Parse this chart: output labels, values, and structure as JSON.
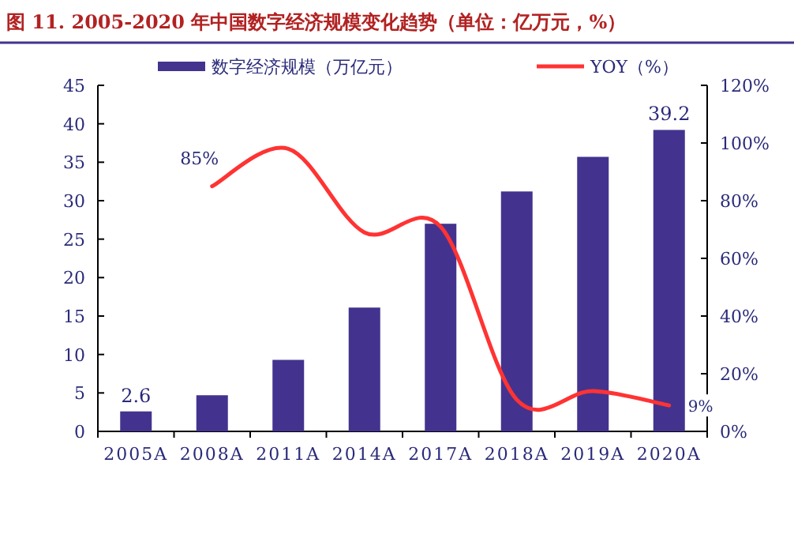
{
  "chart_data": {
    "type": "bar",
    "title": "图 11. 2005-2020 年中国数字经济规模变化趋势（单位：亿万元，%）",
    "categories": [
      "2005A",
      "2008A",
      "2011A",
      "2014A",
      "2017A",
      "2018A",
      "2019A",
      "2020A"
    ],
    "series": [
      {
        "name": "数字经济规模（万亿元）",
        "color": "#43338f",
        "values": [
          2.6,
          4.7,
          9.3,
          16.1,
          27.0,
          31.2,
          35.7,
          39.2
        ],
        "value_labels": [
          "2.6",
          null,
          null,
          null,
          null,
          null,
          null,
          "39.2"
        ]
      },
      {
        "name": "YOY（%）",
        "type": "line",
        "axis": "y2",
        "color": "#ff3333",
        "values": [
          null,
          85,
          98,
          69,
          71,
          11,
          14,
          9
        ],
        "value_labels": [
          null,
          "85%",
          null,
          null,
          null,
          null,
          null,
          "9%"
        ]
      }
    ],
    "ylim": [
      0,
      45
    ],
    "yticks": [
      0,
      5,
      10,
      15,
      20,
      25,
      30,
      35,
      40,
      45
    ],
    "y2lim": [
      0,
      120
    ],
    "y2ticks": [
      {
        "value": 0,
        "label": "0%"
      },
      {
        "value": 20,
        "label": "20%"
      },
      {
        "value": 40,
        "label": "40%"
      },
      {
        "value": 60,
        "label": "60%"
      },
      {
        "value": 80,
        "label": "80%"
      },
      {
        "value": 100,
        "label": "100%"
      },
      {
        "value": 120,
        "label": "120%"
      }
    ],
    "legend": "top",
    "grid": false
  }
}
